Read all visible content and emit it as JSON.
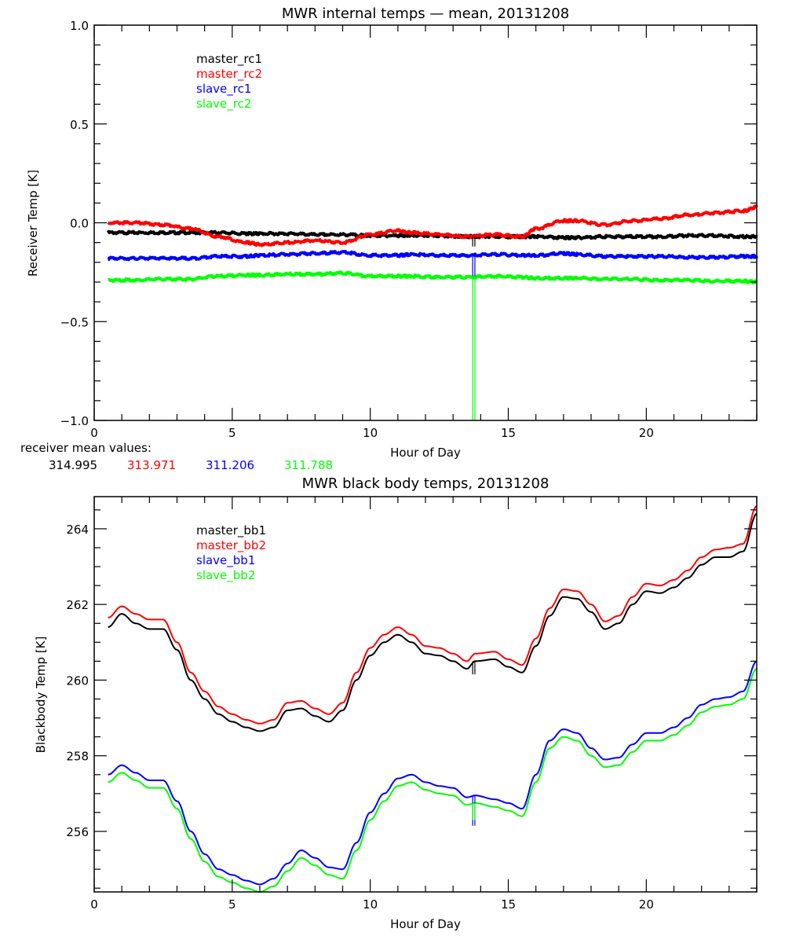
{
  "chart_data": [
    {
      "type": "line",
      "title": "MWR internal temps — mean, 20131208",
      "xlabel": "Hour of Day",
      "ylabel": "Receiver Temp [K]",
      "xlim": [
        0,
        24
      ],
      "ylim": [
        -1.0,
        1.0
      ],
      "x_ticks": [
        0,
        5,
        10,
        15,
        20
      ],
      "x_tick_labels": [
        "0",
        "5",
        "10",
        "15",
        "20"
      ],
      "y_ticks": [
        -1.0,
        -0.5,
        0.0,
        0.5,
        1.0
      ],
      "y_tick_labels": [
        "−1.0",
        "−0.5",
        "0.0",
        "0.5",
        "1.0"
      ],
      "grid": false,
      "legend_position": "top-left",
      "x": [
        0.5,
        1.5,
        2.5,
        3.5,
        4.5,
        5.5,
        6.0,
        7.0,
        8.0,
        9.0,
        10.0,
        11.0,
        11.5,
        12.5,
        13.5,
        14.5,
        15.5,
        16.0,
        17.0,
        17.5,
        18.5,
        19.5,
        20.5,
        21.5,
        22.5,
        23.5,
        24.0
      ],
      "series": [
        {
          "name": "master_rc1",
          "color": "#000000",
          "values": [
            -0.05,
            -0.05,
            -0.05,
            -0.05,
            -0.05,
            -0.055,
            -0.055,
            -0.055,
            -0.06,
            -0.06,
            -0.065,
            -0.065,
            -0.065,
            -0.065,
            -0.07,
            -0.07,
            -0.07,
            -0.07,
            -0.075,
            -0.075,
            -0.07,
            -0.07,
            -0.07,
            -0.065,
            -0.065,
            -0.07,
            -0.07
          ]
        },
        {
          "name": "master_rc2",
          "color": "#ff0000",
          "values": [
            0.0,
            0.0,
            -0.01,
            -0.03,
            -0.07,
            -0.1,
            -0.11,
            -0.1,
            -0.09,
            -0.1,
            -0.06,
            -0.04,
            -0.05,
            -0.06,
            -0.07,
            -0.06,
            -0.07,
            -0.03,
            0.01,
            0.01,
            -0.01,
            0.01,
            0.02,
            0.04,
            0.05,
            0.06,
            0.08
          ]
        },
        {
          "name": "slave_rc1",
          "color": "#0000ff",
          "values": [
            -0.18,
            -0.18,
            -0.18,
            -0.18,
            -0.17,
            -0.17,
            -0.165,
            -0.16,
            -0.155,
            -0.15,
            -0.165,
            -0.165,
            -0.16,
            -0.165,
            -0.165,
            -0.16,
            -0.165,
            -0.165,
            -0.155,
            -0.16,
            -0.17,
            -0.17,
            -0.17,
            -0.175,
            -0.175,
            -0.17,
            -0.17
          ]
        },
        {
          "name": "slave_rc2",
          "color": "#00ff00",
          "values": [
            -0.29,
            -0.29,
            -0.285,
            -0.285,
            -0.27,
            -0.265,
            -0.265,
            -0.26,
            -0.26,
            -0.255,
            -0.27,
            -0.27,
            -0.27,
            -0.275,
            -0.275,
            -0.27,
            -0.275,
            -0.28,
            -0.28,
            -0.28,
            -0.285,
            -0.285,
            -0.29,
            -0.29,
            -0.295,
            -0.295,
            -0.3
          ]
        }
      ],
      "spikes": [
        {
          "series": "master_rc1",
          "x": 13.75,
          "to": -0.12
        },
        {
          "series": "slave_rc1",
          "x": 13.75,
          "to": -0.27
        },
        {
          "series": "slave_rc2",
          "x": 13.75,
          "to": -1.0
        }
      ],
      "annotation": {
        "label": "receiver mean values:",
        "values": [
          {
            "text": "314.995",
            "color": "#000000"
          },
          {
            "text": "313.971",
            "color": "#ff0000"
          },
          {
            "text": "311.206",
            "color": "#0000ff"
          },
          {
            "text": "311.788",
            "color": "#00ff00"
          }
        ]
      }
    },
    {
      "type": "line",
      "title": "MWR black body temps, 20131208",
      "xlabel": "Hour of Day",
      "ylabel": "Blackbody Temp [K]",
      "xlim": [
        0,
        24
      ],
      "ylim": [
        254.4,
        264.85
      ],
      "x_ticks": [
        0,
        5,
        10,
        15,
        20
      ],
      "x_tick_labels": [
        "0",
        "5",
        "10",
        "15",
        "20"
      ],
      "y_ticks": [
        256,
        258,
        260,
        262,
        264
      ],
      "y_tick_labels": [
        "256",
        "258",
        "260",
        "262",
        "264"
      ],
      "grid": false,
      "legend_position": "top-left",
      "x": [
        0.5,
        1.0,
        1.5,
        2.0,
        2.5,
        3.0,
        3.5,
        4.0,
        4.5,
        5.0,
        5.5,
        6.0,
        6.5,
        7.0,
        7.5,
        8.0,
        8.5,
        9.0,
        9.5,
        10.0,
        10.5,
        11.0,
        11.5,
        12.0,
        12.5,
        13.0,
        13.5,
        13.8,
        14.5,
        15.0,
        15.5,
        16.0,
        16.5,
        17.0,
        17.5,
        18.0,
        18.5,
        19.0,
        19.5,
        20.0,
        20.5,
        21.0,
        21.5,
        22.0,
        22.5,
        23.0,
        23.5,
        24.0
      ],
      "series": [
        {
          "name": "master_bb1",
          "color": "#000000",
          "values": [
            261.4,
            261.75,
            261.5,
            261.35,
            261.35,
            260.8,
            260.0,
            259.5,
            259.1,
            258.9,
            258.75,
            258.65,
            258.75,
            259.2,
            259.25,
            259.05,
            258.9,
            259.2,
            260.0,
            260.65,
            261.0,
            261.2,
            261.0,
            260.7,
            260.65,
            260.5,
            260.3,
            260.5,
            260.55,
            260.35,
            260.2,
            260.9,
            261.7,
            262.2,
            262.15,
            261.8,
            261.35,
            261.5,
            262.0,
            262.35,
            262.3,
            262.45,
            262.7,
            263.05,
            263.25,
            263.25,
            263.4,
            264.4
          ]
        },
        {
          "name": "master_bb2",
          "color": "#ff0000",
          "values": [
            261.65,
            261.95,
            261.75,
            261.6,
            261.6,
            261.0,
            260.2,
            259.7,
            259.3,
            259.1,
            258.95,
            258.85,
            258.95,
            259.4,
            259.45,
            259.25,
            259.1,
            259.4,
            260.2,
            260.85,
            261.2,
            261.4,
            261.2,
            260.9,
            260.85,
            260.7,
            260.5,
            260.7,
            260.75,
            260.55,
            260.4,
            261.1,
            261.9,
            262.4,
            262.35,
            262.0,
            261.55,
            261.7,
            262.2,
            262.55,
            262.5,
            262.65,
            262.9,
            263.25,
            263.45,
            263.5,
            263.6,
            264.6
          ]
        },
        {
          "name": "slave_bb1",
          "color": "#0000ff",
          "values": [
            257.5,
            257.75,
            257.55,
            257.35,
            257.35,
            256.8,
            256.0,
            255.4,
            255.0,
            254.85,
            254.7,
            254.6,
            254.75,
            255.15,
            255.5,
            255.3,
            255.05,
            255.0,
            255.7,
            256.5,
            257.0,
            257.4,
            257.5,
            257.3,
            257.2,
            257.15,
            256.9,
            256.95,
            256.85,
            256.75,
            256.6,
            257.5,
            258.4,
            258.7,
            258.6,
            258.2,
            257.9,
            257.95,
            258.3,
            258.6,
            258.6,
            258.75,
            259.0,
            259.35,
            259.5,
            259.55,
            259.7,
            260.5
          ]
        },
        {
          "name": "slave_bb2",
          "color": "#00ff00",
          "values": [
            257.3,
            257.55,
            257.35,
            257.15,
            257.15,
            256.6,
            255.8,
            255.2,
            254.8,
            254.65,
            254.5,
            254.4,
            254.55,
            254.95,
            255.3,
            255.1,
            254.85,
            254.75,
            255.5,
            256.3,
            256.8,
            257.2,
            257.3,
            257.1,
            257.0,
            256.95,
            256.7,
            256.75,
            256.65,
            256.55,
            256.4,
            257.3,
            258.2,
            258.5,
            258.4,
            258.0,
            257.7,
            257.75,
            258.1,
            258.4,
            258.4,
            258.55,
            258.8,
            259.15,
            259.3,
            259.35,
            259.5,
            260.3
          ]
        }
      ],
      "spikes": [
        {
          "series": "master_bb1",
          "x": 13.75,
          "to": 260.15
        },
        {
          "series": "slave_bb1",
          "x": 13.75,
          "to": 256.15
        },
        {
          "series": "slave_bb2",
          "x": 13.75,
          "to": 256.3
        }
      ]
    }
  ]
}
